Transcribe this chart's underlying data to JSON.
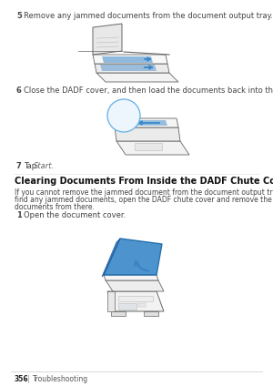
{
  "bg_color": "#ffffff",
  "step5_label": "5",
  "step5_text": "Remove any jammed documents from the document output tray.",
  "step6_label": "6",
  "step6_text": "Close the DADF cover, and then load the documents back into the DADF.",
  "step7_label": "7",
  "step7_pre": "Tap ",
  "step7_code": "Start.",
  "section_title": "Clearing Documents From Inside the DADF Chute Cover",
  "section_body1": "If you cannot remove the jammed document from the document output tray or cannot",
  "section_body2": "find any jammed documents, open the DADF chute cover and remove the jammed",
  "section_body3": "documents from there.",
  "step1_label": "1",
  "step1_text": "Open the document cover.",
  "footer_page": "356",
  "footer_sep": "|",
  "footer_section": "Troubleshooting",
  "blue": "#3a87c8",
  "blue_light": "#6fb5e8",
  "blue_fill": "#5aaae0",
  "gray_line": "#999999",
  "gray_fill": "#f2f2f2",
  "gray_dark": "#666666",
  "gray_mid": "#bbbbbb",
  "text_color": "#444444",
  "title_color": "#111111"
}
